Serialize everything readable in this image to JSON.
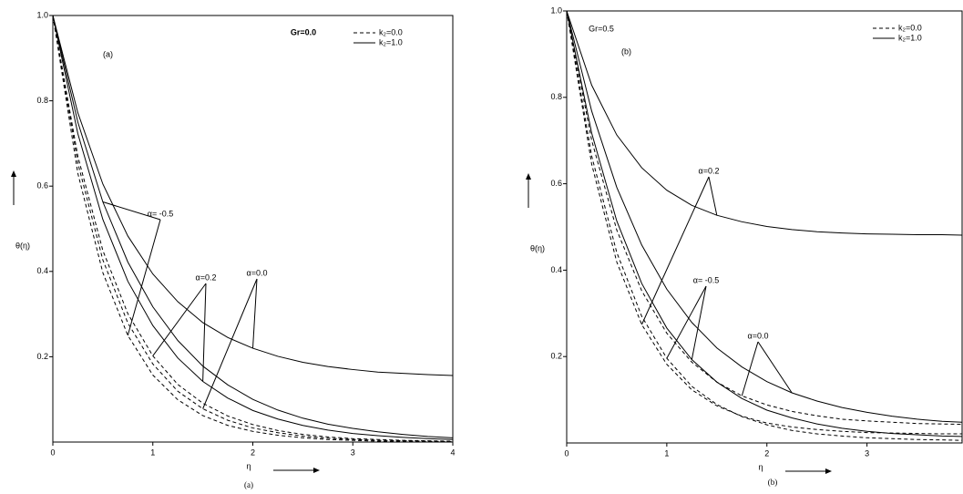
{
  "chart_data": [
    {
      "type": "line",
      "panel_label": "(a)",
      "annotation": "Gr=0.0",
      "xlabel": "η",
      "ylabel": "θ(η)",
      "caption": "(a)",
      "xlim": [
        0,
        4
      ],
      "xticks": [
        0,
        1,
        2,
        3,
        4
      ],
      "ylim": [
        0,
        1
      ],
      "yticks": [
        0.2,
        0.4,
        0.6,
        0.8,
        {
          "value": 1,
          "label": "1.0"
        }
      ],
      "legend": [
        {
          "label": "k₂=0.0",
          "style": "dashed"
        },
        {
          "label": "k₂=1.0",
          "style": "solid"
        }
      ],
      "x": [
        0,
        0.25,
        0.5,
        0.75,
        1,
        1.25,
        1.5,
        1.75,
        2,
        2.25,
        2.5,
        2.75,
        3,
        3.25,
        3.5,
        3.75,
        4
      ],
      "series": [
        {
          "name": "α= -0.5",
          "color": "#000000",
          "dashed": [
            1,
            0.63,
            0.397,
            0.25,
            0.157,
            0.099,
            0.062,
            0.039,
            0.025,
            0.016,
            0.01,
            0.006,
            0.004,
            0.002,
            0.002,
            0.001,
            0.001
          ],
          "solid": [
            1,
            0.75,
            0.563,
            0.422,
            0.317,
            0.238,
            0.178,
            0.134,
            0.1,
            0.075,
            0.056,
            0.042,
            0.032,
            0.024,
            0.018,
            0.013,
            0.01
          ]
        },
        {
          "name": "α=0.2",
          "color": "#000000",
          "dashed": [
            1,
            0.67,
            0.449,
            0.301,
            0.202,
            0.135,
            0.091,
            0.061,
            0.041,
            0.027,
            0.018,
            0.012,
            0.008,
            0.006,
            0.004,
            0.003,
            0.002
          ],
          "solid": [
            1,
            0.723,
            0.522,
            0.377,
            0.273,
            0.197,
            0.142,
            0.103,
            0.074,
            0.054,
            0.039,
            0.028,
            0.02,
            0.015,
            0.011,
            0.008,
            0.006
          ]
        },
        {
          "name": "α=0.0",
          "color": "#000000",
          "dashed": [
            1,
            0.654,
            0.427,
            0.279,
            0.183,
            0.119,
            0.078,
            0.051,
            0.033,
            0.022,
            0.014,
            0.009,
            0.006,
            0.004,
            0.003,
            0.002,
            0.001
          ],
          "solid": [
            1,
            0.772,
            0.605,
            0.483,
            0.394,
            0.329,
            0.28,
            0.245,
            0.22,
            0.201,
            0.187,
            0.177,
            0.17,
            0.164,
            0.161,
            0.158,
            0.156
          ]
        }
      ]
    },
    {
      "type": "line",
      "panel_label": "(b)",
      "annotation": "Gr=0.5",
      "xlabel": "η",
      "ylabel": "θ(η)",
      "caption": "(b)",
      "xlim": [
        0,
        3.95
      ],
      "xticks": [
        0,
        1,
        2,
        3
      ],
      "ylim": [
        0,
        1
      ],
      "yticks": [
        0.2,
        0.4,
        0.6,
        0.8,
        {
          "value": 1,
          "label": "1.0"
        }
      ],
      "legend": [
        {
          "label": "k₂=0.0",
          "style": "dashed"
        },
        {
          "label": "k₂=1.0",
          "style": "solid"
        }
      ],
      "x": [
        0,
        0.25,
        0.5,
        0.75,
        1,
        1.25,
        1.5,
        1.75,
        2,
        2.25,
        2.5,
        2.75,
        3,
        3.25,
        3.5,
        3.75,
        3.95
      ],
      "series": [
        {
          "name": "α=0.2",
          "color": "#000000",
          "dashed": [
            1,
            0.645,
            0.419,
            0.274,
            0.182,
            0.123,
            0.086,
            0.062,
            0.046,
            0.037,
            0.031,
            0.027,
            0.024,
            0.023,
            0.022,
            0.021,
            0.021
          ],
          "solid": [
            1,
            0.828,
            0.713,
            0.637,
            0.585,
            0.55,
            0.527,
            0.512,
            0.501,
            0.494,
            0.489,
            0.486,
            0.484,
            0.483,
            0.482,
            0.482,
            0.481
          ]
        },
        {
          "name": "α= -0.5",
          "color": "#000000",
          "dashed": [
            1,
            0.664,
            0.441,
            0.293,
            0.196,
            0.131,
            0.089,
            0.061,
            0.042,
            0.029,
            0.021,
            0.016,
            0.012,
            0.01,
            0.008,
            0.007,
            0.006
          ],
          "solid": [
            1,
            0.717,
            0.514,
            0.369,
            0.266,
            0.193,
            0.141,
            0.103,
            0.076,
            0.058,
            0.044,
            0.034,
            0.027,
            0.022,
            0.019,
            0.016,
            0.015
          ]
        },
        {
          "name": "α=0.0",
          "color": "#000000",
          "dashed": [
            1,
            0.7,
            0.493,
            0.352,
            0.254,
            0.187,
            0.141,
            0.109,
            0.088,
            0.073,
            0.063,
            0.055,
            0.051,
            0.048,
            0.045,
            0.044,
            0.043
          ],
          "solid": [
            1,
            0.768,
            0.592,
            0.458,
            0.356,
            0.279,
            0.22,
            0.176,
            0.142,
            0.116,
            0.097,
            0.082,
            0.071,
            0.062,
            0.055,
            0.05,
            0.048
          ]
        }
      ]
    }
  ]
}
